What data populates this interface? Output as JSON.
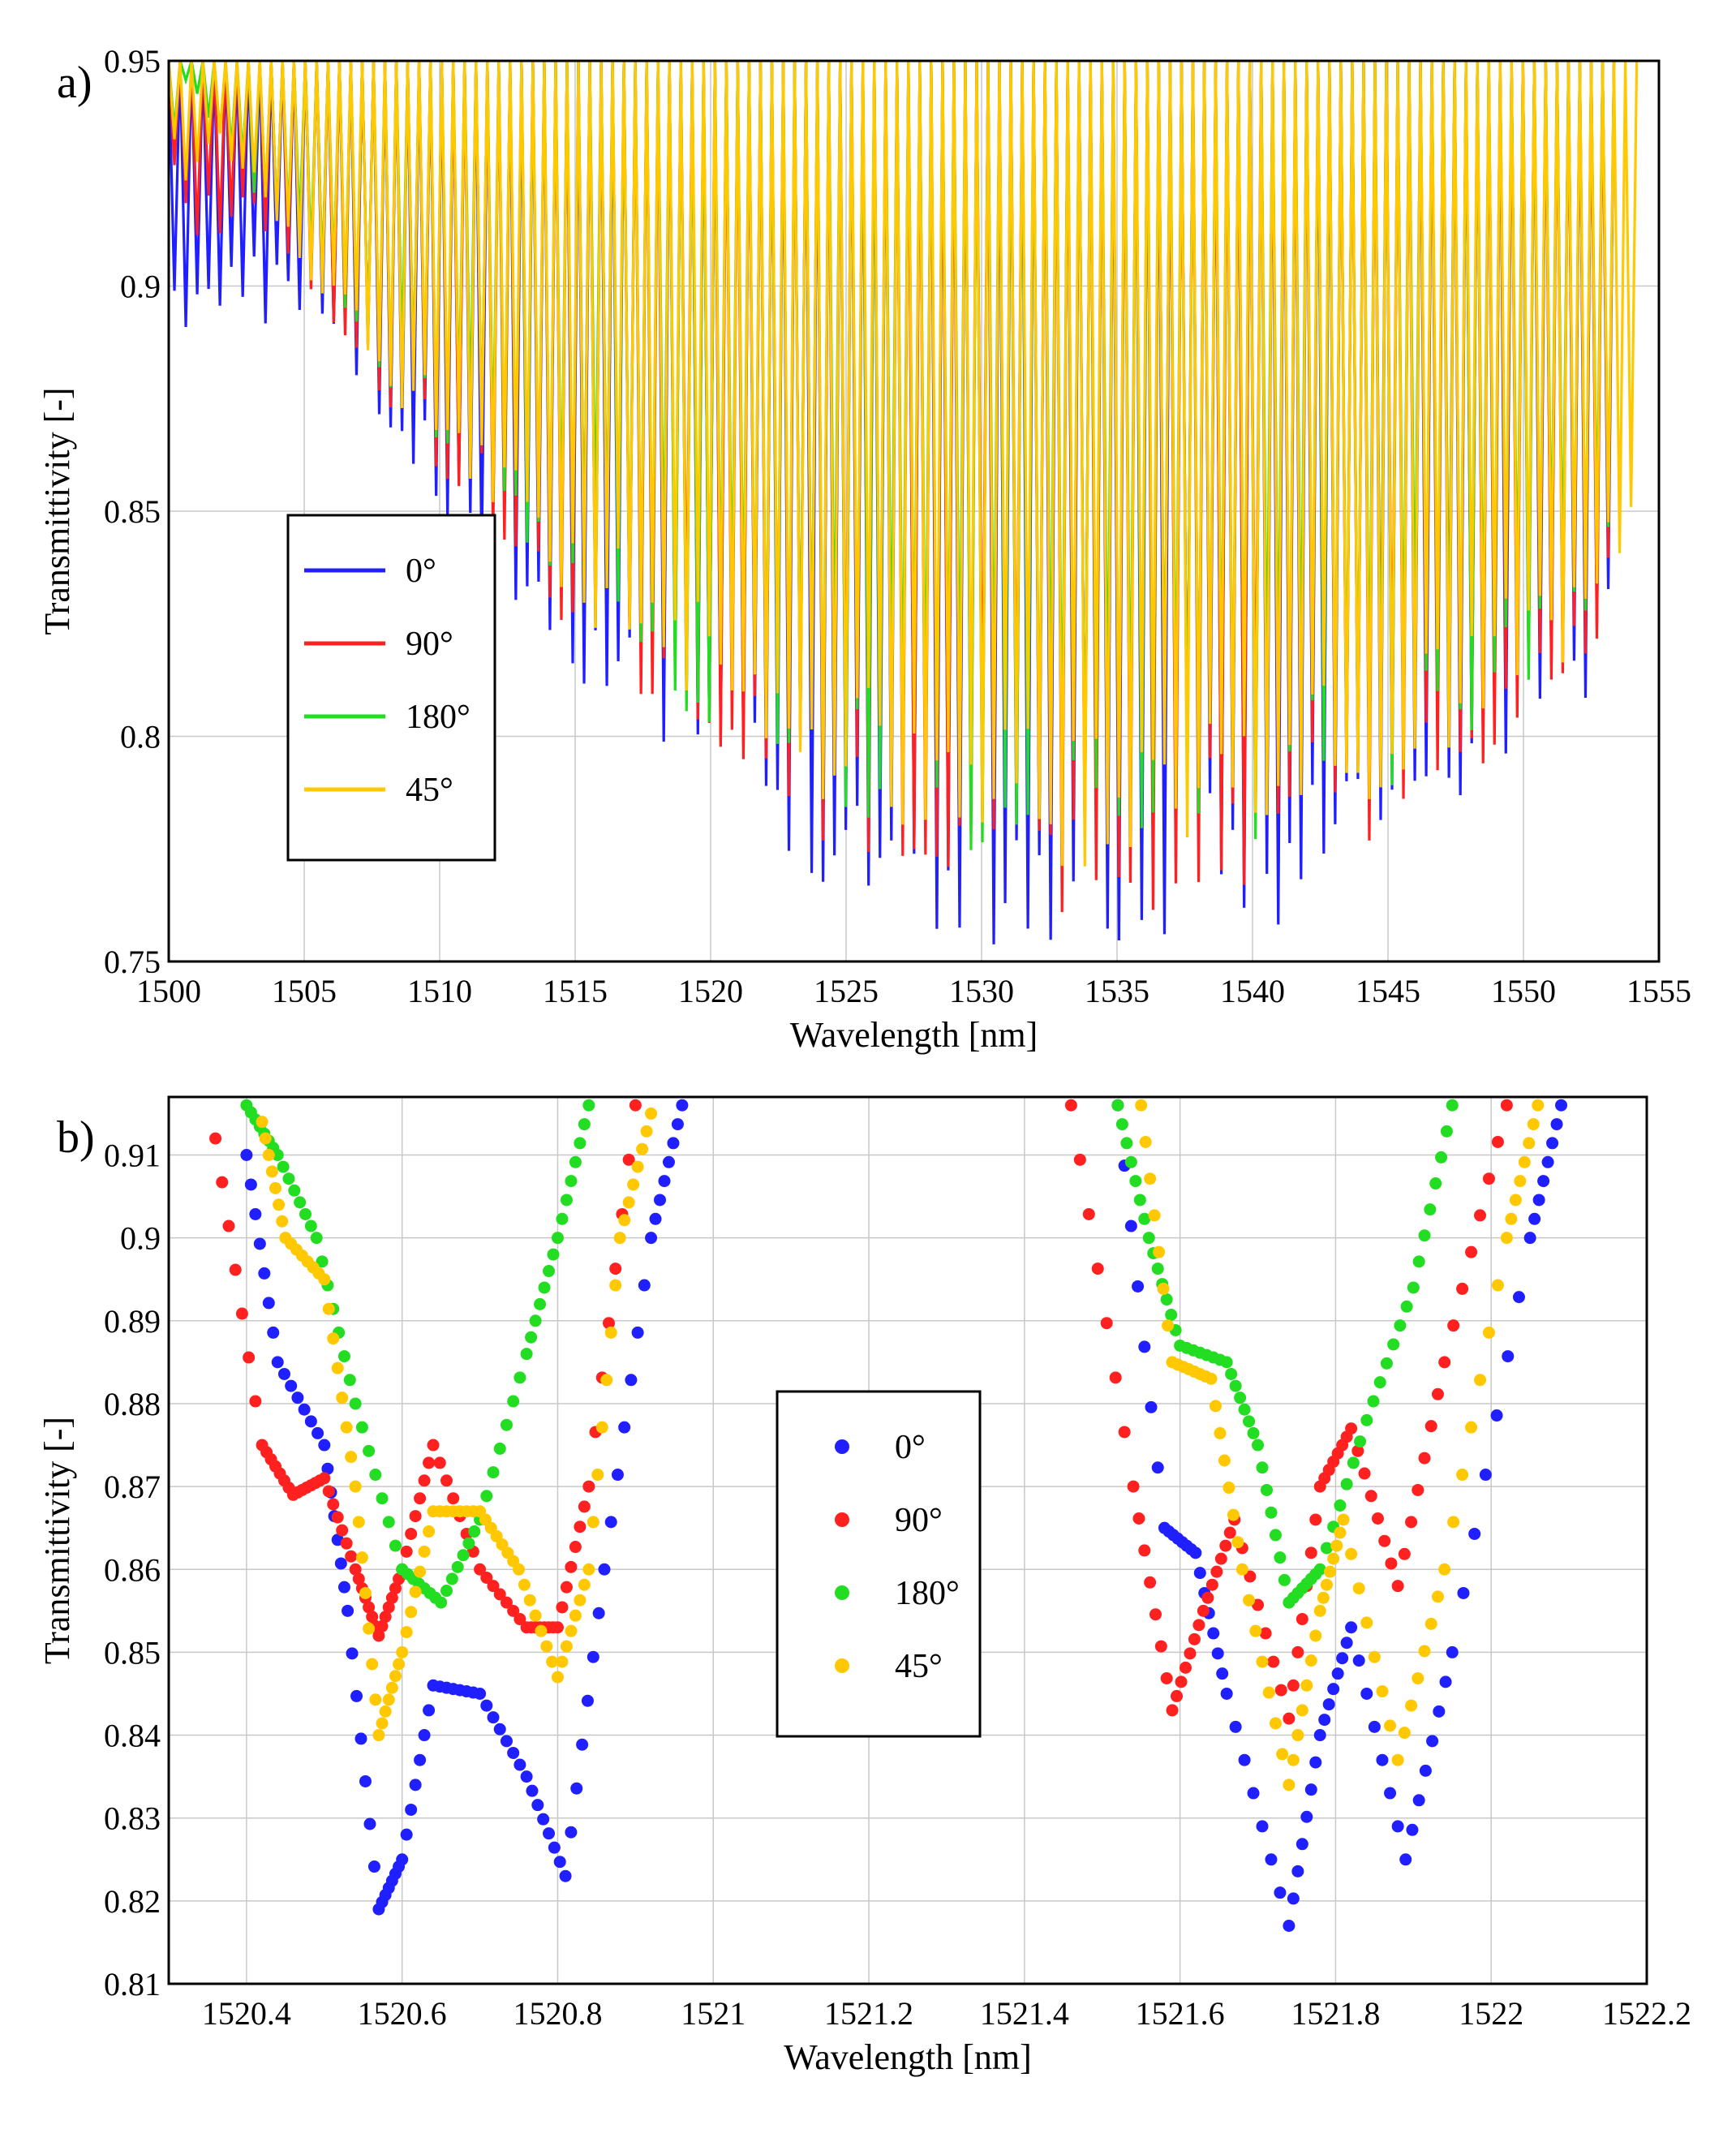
{
  "chart_data": [
    {
      "panel": "a)",
      "type": "line",
      "xlabel": "Wavelength [nm]",
      "ylabel": "Transmittivity [-]",
      "xlim": [
        1500,
        1555
      ],
      "ylim": [
        0.75,
        0.95
      ],
      "xticks": [
        1500,
        1505,
        1510,
        1515,
        1520,
        1525,
        1530,
        1535,
        1540,
        1545,
        1550,
        1555
      ],
      "yticks": [
        0.75,
        0.8,
        0.85,
        0.9,
        0.95
      ],
      "grid": true,
      "legend_position": "center-left",
      "series": [
        {
          "name": "0°",
          "color": "#1f1fff",
          "comb_center": 1534,
          "dip_max_transmittivity": 0.9,
          "min_transmittivity": 0.75,
          "comb_start": 1500,
          "comb_end": 1553
        },
        {
          "name": "90°",
          "color": "#ff2020",
          "comb_center": 1534,
          "dip_max_transmittivity": 0.92,
          "min_transmittivity": 0.76,
          "comb_start": 1500,
          "comb_end": 1553
        },
        {
          "name": "180°",
          "color": "#22dd22",
          "comb_center": 1534,
          "dip_max_transmittivity": 0.94,
          "min_transmittivity": 0.77,
          "comb_start": 1500,
          "comb_end": 1553
        },
        {
          "name": "45°",
          "color": "#ffc800",
          "comb_center": 1534,
          "dip_max_transmittivity": 0.93,
          "min_transmittivity": 0.77,
          "comb_start": 1500,
          "comb_end": 1554
        }
      ]
    },
    {
      "panel": "b)",
      "type": "scatter",
      "xlabel": "Wavelength [nm]",
      "ylabel": "Transmittivity [-]",
      "xlim": [
        1520.3,
        1522.2
      ],
      "ylim": [
        0.81,
        0.917
      ],
      "xticks": [
        1520.4,
        1520.6,
        1520.8,
        1521,
        1521.2,
        1521.4,
        1521.6,
        1521.8,
        1522,
        1522.2
      ],
      "yticks": [
        0.81,
        0.82,
        0.83,
        0.84,
        0.85,
        0.86,
        0.87,
        0.88,
        0.89,
        0.9,
        0.91
      ],
      "grid": true,
      "legend_position": "center",
      "series": [
        {
          "name": "0°",
          "color": "#1f1fff",
          "dip1": [
            [
              1520.4,
              0.91
            ],
            [
              1520.44,
              0.885
            ],
            [
              1520.5,
              0.875
            ],
            [
              1520.53,
              0.855
            ],
            [
              1520.57,
              0.819
            ],
            [
              1520.6,
              0.825
            ],
            [
              1520.64,
              0.846
            ],
            [
              1520.7,
              0.845
            ],
            [
              1520.76,
              0.835
            ],
            [
              1520.81,
              0.823
            ],
            [
              1520.86,
              0.86
            ],
            [
              1520.92,
              0.9
            ],
            [
              1520.96,
              0.916
            ]
          ],
          "dip2": [
            [
              1521.52,
              0.916
            ],
            [
              1521.58,
              0.865
            ],
            [
              1521.62,
              0.862
            ],
            [
              1521.66,
              0.845
            ],
            [
              1521.74,
              0.817
            ],
            [
              1521.78,
              0.84
            ],
            [
              1521.82,
              0.853
            ],
            [
              1521.89,
              0.825
            ],
            [
              1521.95,
              0.85
            ],
            [
              1522.05,
              0.9
            ],
            [
              1522.09,
              0.916
            ]
          ]
        },
        {
          "name": "90°",
          "color": "#ff2020",
          "dip1": [
            [
              1520.36,
              0.912
            ],
            [
              1520.42,
              0.875
            ],
            [
              1520.46,
              0.869
            ],
            [
              1520.5,
              0.871
            ],
            [
              1520.54,
              0.86
            ],
            [
              1520.57,
              0.852
            ],
            [
              1520.6,
              0.86
            ],
            [
              1520.64,
              0.875
            ],
            [
              1520.7,
              0.86
            ],
            [
              1520.76,
              0.853
            ],
            [
              1520.8,
              0.853
            ],
            [
              1520.84,
              0.87
            ],
            [
              1520.9,
              0.916
            ]
          ],
          "dip2": [
            [
              1521.46,
              0.916
            ],
            [
              1521.54,
              0.87
            ],
            [
              1521.59,
              0.843
            ],
            [
              1521.63,
              0.855
            ],
            [
              1521.67,
              0.866
            ],
            [
              1521.74,
              0.842
            ],
            [
              1521.78,
              0.87
            ],
            [
              1521.82,
              0.877
            ],
            [
              1521.88,
              0.858
            ],
            [
              1521.94,
              0.885
            ],
            [
              1522.02,
              0.916
            ]
          ]
        },
        {
          "name": "180°",
          "color": "#22dd22",
          "dip1": [
            [
              1520.4,
              0.916
            ],
            [
              1520.44,
              0.91
            ],
            [
              1520.49,
              0.9
            ],
            [
              1520.54,
              0.88
            ],
            [
              1520.6,
              0.86
            ],
            [
              1520.65,
              0.856
            ],
            [
              1520.7,
              0.866
            ],
            [
              1520.76,
              0.886
            ],
            [
              1520.8,
              0.9
            ],
            [
              1520.84,
              0.916
            ]
          ],
          "dip2": [
            [
              1521.52,
              0.916
            ],
            [
              1521.56,
              0.9
            ],
            [
              1521.6,
              0.887
            ],
            [
              1521.66,
              0.885
            ],
            [
              1521.7,
              0.875
            ],
            [
              1521.74,
              0.856
            ],
            [
              1521.78,
              0.86
            ],
            [
              1521.84,
              0.878
            ],
            [
              1521.9,
              0.894
            ],
            [
              1521.95,
              0.916
            ]
          ]
        },
        {
          "name": "45°",
          "color": "#ffc800",
          "dip1": [
            [
              1520.42,
              0.914
            ],
            [
              1520.45,
              0.9
            ],
            [
              1520.5,
              0.895
            ],
            [
              1520.54,
              0.87
            ],
            [
              1520.57,
              0.84
            ],
            [
              1520.6,
              0.85
            ],
            [
              1520.64,
              0.867
            ],
            [
              1520.7,
              0.867
            ],
            [
              1520.75,
              0.86
            ],
            [
              1520.8,
              0.847
            ],
            [
              1520.84,
              0.86
            ],
            [
              1520.88,
              0.9
            ],
            [
              1520.92,
              0.915
            ]
          ],
          "dip2": [
            [
              1521.55,
              0.916
            ],
            [
              1521.59,
              0.885
            ],
            [
              1521.64,
              0.883
            ],
            [
              1521.68,
              0.86
            ],
            [
              1521.74,
              0.834
            ],
            [
              1521.78,
              0.855
            ],
            [
              1521.81,
              0.866
            ],
            [
              1521.88,
              0.837
            ],
            [
              1521.94,
              0.86
            ],
            [
              1522.02,
              0.9
            ],
            [
              1522.06,
              0.916
            ]
          ]
        }
      ]
    }
  ]
}
